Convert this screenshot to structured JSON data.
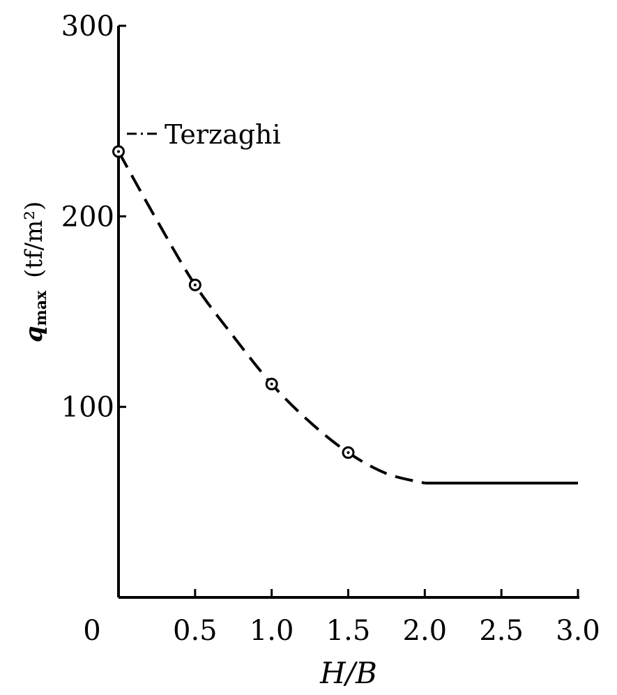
{
  "chart_data": {
    "type": "line",
    "xlabel": "H/B",
    "ylabel": {
      "symbol": "q",
      "subscript": "max",
      "unit": "(tf/m²)"
    },
    "xlim": [
      0,
      3.0
    ],
    "ylim": [
      0,
      300
    ],
    "x_ticks": [
      {
        "value": 0,
        "label": "0"
      },
      {
        "value": 0.5,
        "label": "0.5"
      },
      {
        "value": 1.0,
        "label": "1.0"
      },
      {
        "value": 1.5,
        "label": "1.5"
      },
      {
        "value": 2.0,
        "label": "2.0"
      },
      {
        "value": 2.5,
        "label": "2.5"
      },
      {
        "value": 3.0,
        "label": "3.0"
      }
    ],
    "y_ticks": [
      {
        "value": 100,
        "label": "100"
      },
      {
        "value": 200,
        "label": "200"
      },
      {
        "value": 300,
        "label": "300"
      }
    ],
    "series": [
      {
        "style": "dashed",
        "x": [
          0,
          0.25,
          0.5,
          0.75,
          1.0,
          1.25,
          1.5,
          1.75,
          2.0
        ],
        "y": [
          234,
          198,
          164,
          137,
          112,
          92,
          76,
          65,
          60
        ]
      },
      {
        "style": "solid",
        "x": [
          2.0,
          3.0
        ],
        "y": [
          60,
          60
        ]
      }
    ],
    "markers": [
      {
        "x": 0,
        "y": 234
      },
      {
        "x": 0.5,
        "y": 164
      },
      {
        "x": 1.0,
        "y": 112
      },
      {
        "x": 1.5,
        "y": 76
      }
    ],
    "annotation": {
      "text": "Terzaghi",
      "x": 0,
      "y": 236
    },
    "grid": false,
    "legend": "none"
  }
}
